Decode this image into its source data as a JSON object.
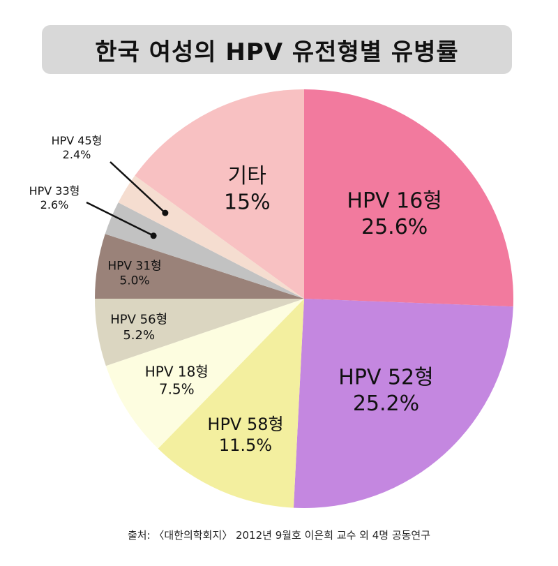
{
  "chart_data": {
    "type": "pie",
    "title": "한국 여성의 HPV 유전형별 유병률",
    "slices": [
      {
        "name": "HPV 16형",
        "value": 25.6,
        "label": "25.6%",
        "color": "#f27a9e"
      },
      {
        "name": "HPV 52형",
        "value": 25.2,
        "label": "25.2%",
        "color": "#c487e0"
      },
      {
        "name": "HPV 58형",
        "value": 11.5,
        "label": "11.5%",
        "color": "#f3ef9f"
      },
      {
        "name": "HPV 18형",
        "value": 7.5,
        "label": "7.5%",
        "color": "#fdfde0"
      },
      {
        "name": "HPV 56형",
        "value": 5.2,
        "label": "5.2%",
        "color": "#dbd6c1"
      },
      {
        "name": "HPV 31형",
        "value": 5.0,
        "label": "5.0%",
        "color": "#9a8279"
      },
      {
        "name": "HPV 33형",
        "value": 2.6,
        "label": "2.6%",
        "color": "#c2c2c2"
      },
      {
        "name": "HPV 45형",
        "value": 2.4,
        "label": "2.4%",
        "color": "#f5ddd0"
      },
      {
        "name": "기타",
        "value": 15,
        "label": "15%",
        "color": "#f8c1c2"
      }
    ]
  },
  "source": "출처: 〈대한의학회지〉 2012년 9월호 이은희 교수 외 4명 공동연구"
}
